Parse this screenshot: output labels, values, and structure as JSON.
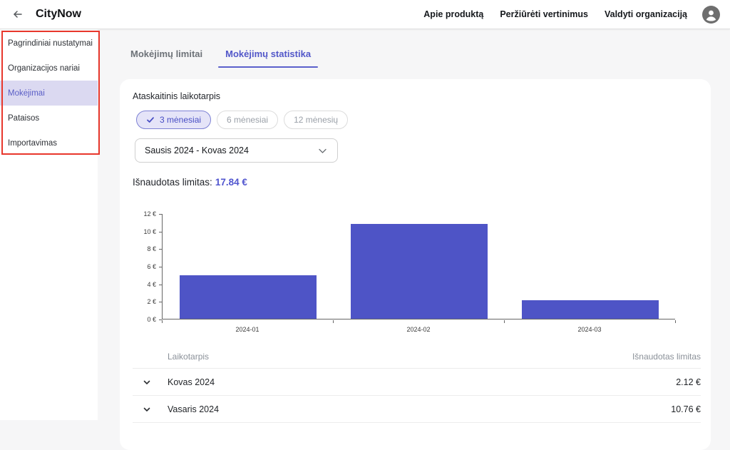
{
  "header": {
    "title": "CityNow",
    "nav": [
      {
        "label": "Apie produktą"
      },
      {
        "label": "Peržiūrėti vertinimus"
      },
      {
        "label": "Valdyti organizaciją"
      }
    ]
  },
  "sidebar": {
    "items": [
      {
        "label": "Pagrindiniai nustatymai",
        "active": false
      },
      {
        "label": "Organizacijos nariai",
        "active": false
      },
      {
        "label": "Mokėjimai",
        "active": true
      },
      {
        "label": "Pataisos",
        "active": false
      },
      {
        "label": "Importavimas",
        "active": false
      }
    ]
  },
  "tabs": [
    {
      "label": "Mokėjimų limitai",
      "active": false
    },
    {
      "label": "Mokėjimų statistika",
      "active": true
    }
  ],
  "content": {
    "period_section_label": "Ataskaitinis laikotarpis",
    "period_chips": [
      {
        "label": "3 mėnesiai",
        "selected": true
      },
      {
        "label": "6 mėnesiai",
        "selected": false
      },
      {
        "label": "12 mėnesių",
        "selected": false
      }
    ],
    "period_dropdown_value": "Sausis 2024 - Kovas 2024",
    "total_label": "Išnaudotas limitas:",
    "total_value": "17.84 €"
  },
  "chart_data": {
    "type": "bar",
    "categories": [
      "2024-01",
      "2024-02",
      "2024-03"
    ],
    "values": [
      4.96,
      10.76,
      2.12
    ],
    "title": "",
    "xlabel": "",
    "ylabel": "",
    "ylim": [
      0,
      12
    ],
    "ytick_step": 2,
    "ytick_suffix": " €",
    "grid": false,
    "legend": false,
    "bar_color": "#4e54c6"
  },
  "table": {
    "columns": [
      "Laikotarpis",
      "Išnaudotas limitas"
    ],
    "rows": [
      {
        "period": "Kovas 2024",
        "value": "2.12 €"
      },
      {
        "period": "Vasaris 2024",
        "value": "10.76 €"
      }
    ]
  },
  "colors": {
    "accent": "#5257c9",
    "bar": "#4e54c6",
    "selected_bg": "#dbd9f1",
    "annotation_red": "#e8372c"
  }
}
